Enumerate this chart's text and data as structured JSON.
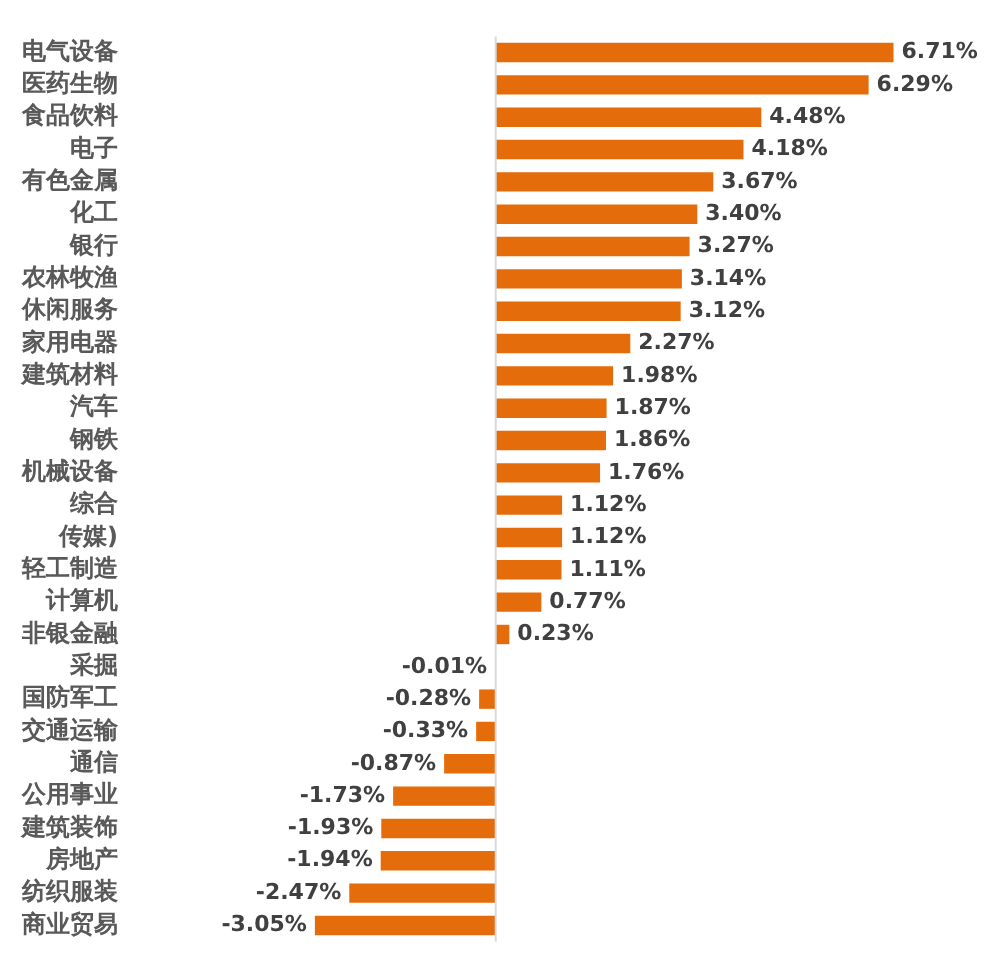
{
  "chart_data": {
    "type": "bar",
    "orientation": "horizontal",
    "categories": [
      "电气设备",
      "医药生物",
      "食品饮料",
      "电子",
      "有色金属",
      "化工",
      "银行",
      "农林牧渔",
      "休闲服务",
      "家用电器",
      "建筑材料",
      "汽车",
      "钢铁",
      "机械设备",
      "综合",
      "传媒)",
      "轻工制造",
      "计算机",
      "非银金融",
      "采掘",
      "国防军工",
      "交通运输",
      "通信",
      "公用事业",
      "建筑装饰",
      "房地产",
      "纺织服装",
      "商业贸易"
    ],
    "values": [
      6.71,
      6.29,
      4.48,
      4.18,
      3.67,
      3.4,
      3.27,
      3.14,
      3.12,
      2.27,
      1.98,
      1.87,
      1.86,
      1.76,
      1.12,
      1.12,
      1.11,
      0.77,
      0.23,
      -0.01,
      -0.28,
      -0.33,
      -0.87,
      -1.73,
      -1.93,
      -1.94,
      -2.47,
      -3.05
    ],
    "value_labels": [
      "6.71%",
      "6.29%",
      "4.48%",
      "4.18%",
      "3.67%",
      "3.40%",
      "3.27%",
      "3.14%",
      "3.12%",
      "2.27%",
      "1.98%",
      "1.87%",
      "1.86%",
      "1.76%",
      "1.12%",
      "1.12%",
      "1.11%",
      "0.77%",
      "0.23%",
      "-0.01%",
      "-0.28%",
      "-0.33%",
      "-0.87%",
      "-1.73%",
      "-1.93%",
      "-1.94%",
      "-2.47%",
      "-3.05%"
    ],
    "color": "#e46c0a"
  }
}
